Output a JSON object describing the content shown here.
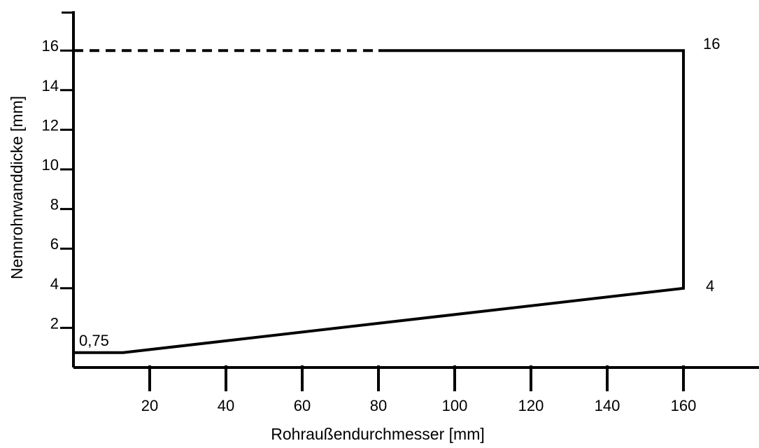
{
  "chart_data": {
    "type": "line",
    "xlabel": "Rohraußendurchmesser [mm]",
    "ylabel": "Nennrohrwanddicke [mm]",
    "xlim": [
      0,
      180
    ],
    "ylim": [
      0,
      18
    ],
    "x_ticks": [
      20,
      40,
      60,
      80,
      100,
      120,
      140,
      160
    ],
    "y_ticks": [
      2,
      4,
      6,
      8,
      10,
      12,
      14,
      16
    ],
    "x_tick_labels": [
      "20",
      "40",
      "60",
      "80",
      "100",
      "120",
      "140",
      "160"
    ],
    "y_tick_labels": [
      "2",
      "4",
      "6",
      "8",
      "10",
      "12",
      "14",
      "16"
    ],
    "grid": false,
    "series": [
      {
        "style": "solid",
        "x": [
          0,
          13,
          160,
          160,
          80
        ],
        "y": [
          0.75,
          0.75,
          4,
          16,
          16
        ]
      },
      {
        "style": "dashed",
        "x": [
          0,
          80
        ],
        "y": [
          16,
          16
        ]
      }
    ],
    "annotations": [
      {
        "text": "0,75",
        "x": 0,
        "y": 0.75
      },
      {
        "text": "16",
        "x": 160,
        "y": 16
      },
      {
        "text": "4",
        "x": 160,
        "y": 4
      }
    ]
  }
}
